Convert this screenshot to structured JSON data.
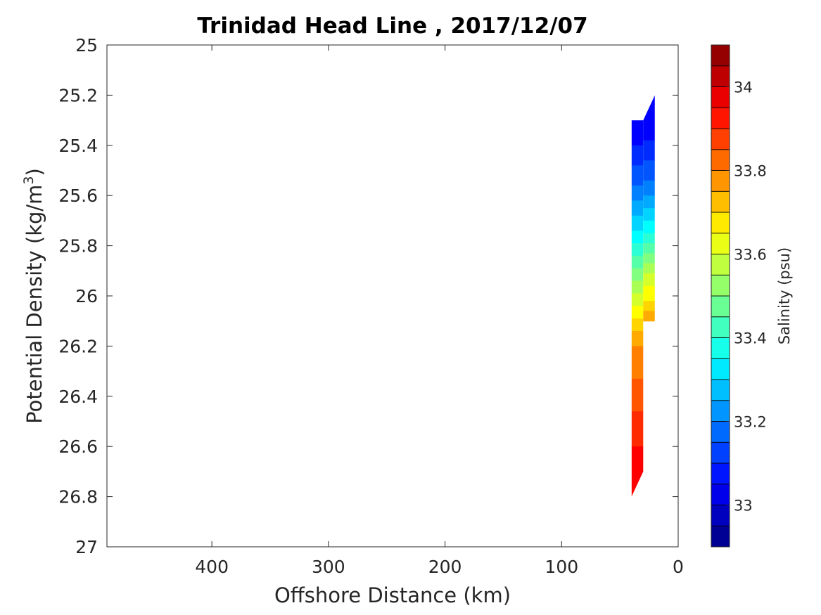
{
  "chart_data": {
    "type": "contour",
    "title": "Trinidad Head Line , 2017/12/07",
    "xlabel": "Offshore Distance (km)",
    "ylabel_main": "Potential Density (kg/m",
    "ylabel_sup": "3",
    "ylabel_close": ")",
    "xlim": [
      490,
      0
    ],
    "x_reversed": true,
    "ylim": [
      25,
      27
    ],
    "y_reversed": true,
    "x_ticks": [
      400,
      300,
      200,
      100,
      0
    ],
    "y_ticks": [
      25,
      25.2,
      25.4,
      25.6,
      25.8,
      26,
      26.2,
      26.4,
      26.6,
      26.8,
      27
    ],
    "grid": false,
    "colorbar": {
      "label": "Salinity (psu)",
      "min": 32.9,
      "max": 34.1,
      "step": 0.05,
      "ticks": [
        33,
        33.2,
        33.4,
        33.6,
        33.8,
        34
      ],
      "colormap": "jet"
    },
    "contour_columns": {
      "x_left": 40,
      "x_mid": 30,
      "x_right": 20,
      "left_column": {
        "x_range": [
          40,
          30
        ],
        "y_top": 25.3,
        "y_bottom": 26.8,
        "y_bottom_right": 26.7,
        "bands": [
          {
            "y_top": 25.3,
            "y_bottom": 25.4,
            "salinity": 33.05
          },
          {
            "y_top": 25.4,
            "y_bottom": 25.48,
            "salinity": 33.1
          },
          {
            "y_top": 25.48,
            "y_bottom": 25.56,
            "salinity": 33.15
          },
          {
            "y_top": 25.56,
            "y_bottom": 25.62,
            "salinity": 33.2
          },
          {
            "y_top": 25.62,
            "y_bottom": 25.68,
            "salinity": 33.25
          },
          {
            "y_top": 25.68,
            "y_bottom": 25.74,
            "salinity": 33.3
          },
          {
            "y_top": 25.74,
            "y_bottom": 25.79,
            "salinity": 33.35
          },
          {
            "y_top": 25.79,
            "y_bottom": 25.84,
            "salinity": 33.4
          },
          {
            "y_top": 25.84,
            "y_bottom": 25.89,
            "salinity": 33.45
          },
          {
            "y_top": 25.89,
            "y_bottom": 25.94,
            "salinity": 33.5
          },
          {
            "y_top": 25.94,
            "y_bottom": 25.99,
            "salinity": 33.55
          },
          {
            "y_top": 25.99,
            "y_bottom": 26.04,
            "salinity": 33.6
          },
          {
            "y_top": 26.04,
            "y_bottom": 26.09,
            "salinity": 33.65
          },
          {
            "y_top": 26.09,
            "y_bottom": 26.14,
            "salinity": 33.7
          },
          {
            "y_top": 26.14,
            "y_bottom": 26.2,
            "salinity": 33.75
          },
          {
            "y_top": 26.2,
            "y_bottom": 26.33,
            "salinity": 33.8
          },
          {
            "y_top": 26.33,
            "y_bottom": 26.46,
            "salinity": 33.85
          },
          {
            "y_top": 26.46,
            "y_bottom": 26.6,
            "salinity": 33.9
          },
          {
            "y_top": 26.6,
            "y_bottom": 26.8,
            "salinity": 33.95
          }
        ]
      },
      "right_column": {
        "x_range": [
          30,
          20
        ],
        "y_top_left": 25.3,
        "y_top_right": 25.2,
        "y_bottom": 26.1,
        "bands": [
          {
            "y_top": 25.2,
            "y_bottom": 25.38,
            "salinity": 33.05
          },
          {
            "y_top": 25.38,
            "y_bottom": 25.46,
            "salinity": 33.1
          },
          {
            "y_top": 25.46,
            "y_bottom": 25.54,
            "salinity": 33.15
          },
          {
            "y_top": 25.54,
            "y_bottom": 25.6,
            "salinity": 33.2
          },
          {
            "y_top": 25.6,
            "y_bottom": 25.65,
            "salinity": 33.25
          },
          {
            "y_top": 25.65,
            "y_bottom": 25.7,
            "salinity": 33.3
          },
          {
            "y_top": 25.7,
            "y_bottom": 25.75,
            "salinity": 33.35
          },
          {
            "y_top": 25.75,
            "y_bottom": 25.79,
            "salinity": 33.4
          },
          {
            "y_top": 25.79,
            "y_bottom": 25.83,
            "salinity": 33.45
          },
          {
            "y_top": 25.83,
            "y_bottom": 25.87,
            "salinity": 33.5
          },
          {
            "y_top": 25.87,
            "y_bottom": 25.91,
            "salinity": 33.55
          },
          {
            "y_top": 25.91,
            "y_bottom": 25.96,
            "salinity": 33.6
          },
          {
            "y_top": 25.96,
            "y_bottom": 26.02,
            "salinity": 33.65
          },
          {
            "y_top": 26.02,
            "y_bottom": 26.06,
            "salinity": 33.7
          },
          {
            "y_top": 26.06,
            "y_bottom": 26.1,
            "salinity": 33.75
          }
        ]
      }
    }
  }
}
